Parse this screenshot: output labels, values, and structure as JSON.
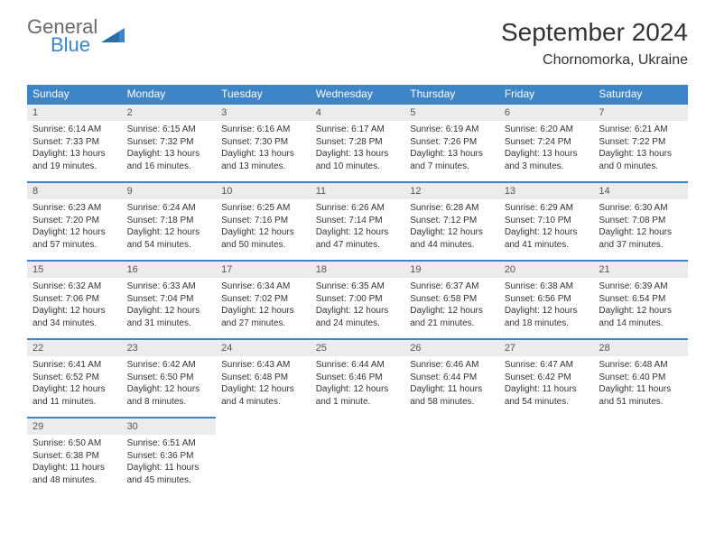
{
  "brand": {
    "word1": "General",
    "word2": "Blue",
    "word1_color": "#6b6b6b",
    "word2_color": "#3d85c6",
    "triangle_color": "#3d85c6"
  },
  "title": "September 2024",
  "location": "Chornomorka, Ukraine",
  "colors": {
    "header_bg": "#3d85c6",
    "header_text": "#ffffff",
    "row_border": "#3d85c6",
    "daynum_bg": "#ececec",
    "body_text": "#333333",
    "page_bg": "#ffffff"
  },
  "typography": {
    "title_fontsize": 28,
    "location_fontsize": 16,
    "dow_fontsize": 12,
    "daynum_fontsize": 11,
    "body_fontsize": 10,
    "font_family": "Arial"
  },
  "dow": [
    "Sunday",
    "Monday",
    "Tuesday",
    "Wednesday",
    "Thursday",
    "Friday",
    "Saturday"
  ],
  "weeks": [
    [
      {
        "n": "1",
        "sr": "Sunrise: 6:14 AM",
        "ss": "Sunset: 7:33 PM",
        "dl": "Daylight: 13 hours and 19 minutes."
      },
      {
        "n": "2",
        "sr": "Sunrise: 6:15 AM",
        "ss": "Sunset: 7:32 PM",
        "dl": "Daylight: 13 hours and 16 minutes."
      },
      {
        "n": "3",
        "sr": "Sunrise: 6:16 AM",
        "ss": "Sunset: 7:30 PM",
        "dl": "Daylight: 13 hours and 13 minutes."
      },
      {
        "n": "4",
        "sr": "Sunrise: 6:17 AM",
        "ss": "Sunset: 7:28 PM",
        "dl": "Daylight: 13 hours and 10 minutes."
      },
      {
        "n": "5",
        "sr": "Sunrise: 6:19 AM",
        "ss": "Sunset: 7:26 PM",
        "dl": "Daylight: 13 hours and 7 minutes."
      },
      {
        "n": "6",
        "sr": "Sunrise: 6:20 AM",
        "ss": "Sunset: 7:24 PM",
        "dl": "Daylight: 13 hours and 3 minutes."
      },
      {
        "n": "7",
        "sr": "Sunrise: 6:21 AM",
        "ss": "Sunset: 7:22 PM",
        "dl": "Daylight: 13 hours and 0 minutes."
      }
    ],
    [
      {
        "n": "8",
        "sr": "Sunrise: 6:23 AM",
        "ss": "Sunset: 7:20 PM",
        "dl": "Daylight: 12 hours and 57 minutes."
      },
      {
        "n": "9",
        "sr": "Sunrise: 6:24 AM",
        "ss": "Sunset: 7:18 PM",
        "dl": "Daylight: 12 hours and 54 minutes."
      },
      {
        "n": "10",
        "sr": "Sunrise: 6:25 AM",
        "ss": "Sunset: 7:16 PM",
        "dl": "Daylight: 12 hours and 50 minutes."
      },
      {
        "n": "11",
        "sr": "Sunrise: 6:26 AM",
        "ss": "Sunset: 7:14 PM",
        "dl": "Daylight: 12 hours and 47 minutes."
      },
      {
        "n": "12",
        "sr": "Sunrise: 6:28 AM",
        "ss": "Sunset: 7:12 PM",
        "dl": "Daylight: 12 hours and 44 minutes."
      },
      {
        "n": "13",
        "sr": "Sunrise: 6:29 AM",
        "ss": "Sunset: 7:10 PM",
        "dl": "Daylight: 12 hours and 41 minutes."
      },
      {
        "n": "14",
        "sr": "Sunrise: 6:30 AM",
        "ss": "Sunset: 7:08 PM",
        "dl": "Daylight: 12 hours and 37 minutes."
      }
    ],
    [
      {
        "n": "15",
        "sr": "Sunrise: 6:32 AM",
        "ss": "Sunset: 7:06 PM",
        "dl": "Daylight: 12 hours and 34 minutes."
      },
      {
        "n": "16",
        "sr": "Sunrise: 6:33 AM",
        "ss": "Sunset: 7:04 PM",
        "dl": "Daylight: 12 hours and 31 minutes."
      },
      {
        "n": "17",
        "sr": "Sunrise: 6:34 AM",
        "ss": "Sunset: 7:02 PM",
        "dl": "Daylight: 12 hours and 27 minutes."
      },
      {
        "n": "18",
        "sr": "Sunrise: 6:35 AM",
        "ss": "Sunset: 7:00 PM",
        "dl": "Daylight: 12 hours and 24 minutes."
      },
      {
        "n": "19",
        "sr": "Sunrise: 6:37 AM",
        "ss": "Sunset: 6:58 PM",
        "dl": "Daylight: 12 hours and 21 minutes."
      },
      {
        "n": "20",
        "sr": "Sunrise: 6:38 AM",
        "ss": "Sunset: 6:56 PM",
        "dl": "Daylight: 12 hours and 18 minutes."
      },
      {
        "n": "21",
        "sr": "Sunrise: 6:39 AM",
        "ss": "Sunset: 6:54 PM",
        "dl": "Daylight: 12 hours and 14 minutes."
      }
    ],
    [
      {
        "n": "22",
        "sr": "Sunrise: 6:41 AM",
        "ss": "Sunset: 6:52 PM",
        "dl": "Daylight: 12 hours and 11 minutes."
      },
      {
        "n": "23",
        "sr": "Sunrise: 6:42 AM",
        "ss": "Sunset: 6:50 PM",
        "dl": "Daylight: 12 hours and 8 minutes."
      },
      {
        "n": "24",
        "sr": "Sunrise: 6:43 AM",
        "ss": "Sunset: 6:48 PM",
        "dl": "Daylight: 12 hours and 4 minutes."
      },
      {
        "n": "25",
        "sr": "Sunrise: 6:44 AM",
        "ss": "Sunset: 6:46 PM",
        "dl": "Daylight: 12 hours and 1 minute."
      },
      {
        "n": "26",
        "sr": "Sunrise: 6:46 AM",
        "ss": "Sunset: 6:44 PM",
        "dl": "Daylight: 11 hours and 58 minutes."
      },
      {
        "n": "27",
        "sr": "Sunrise: 6:47 AM",
        "ss": "Sunset: 6:42 PM",
        "dl": "Daylight: 11 hours and 54 minutes."
      },
      {
        "n": "28",
        "sr": "Sunrise: 6:48 AM",
        "ss": "Sunset: 6:40 PM",
        "dl": "Daylight: 11 hours and 51 minutes."
      }
    ],
    [
      {
        "n": "29",
        "sr": "Sunrise: 6:50 AM",
        "ss": "Sunset: 6:38 PM",
        "dl": "Daylight: 11 hours and 48 minutes."
      },
      {
        "n": "30",
        "sr": "Sunrise: 6:51 AM",
        "ss": "Sunset: 6:36 PM",
        "dl": "Daylight: 11 hours and 45 minutes."
      },
      null,
      null,
      null,
      null,
      null
    ]
  ]
}
